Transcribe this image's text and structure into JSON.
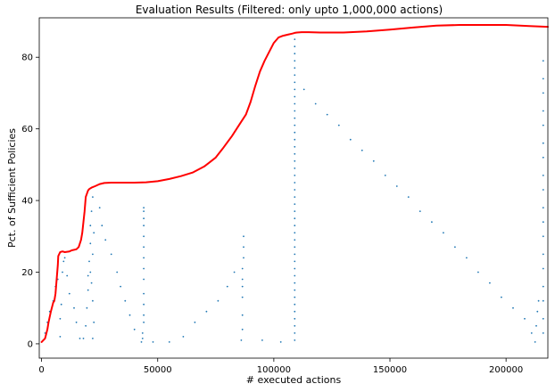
{
  "chart_data": {
    "type": "scatter",
    "title": "Evaluation Results (Filtered: only upto 1,000,000 actions)",
    "xlabel": "# executed actions",
    "ylabel": "Pct. of Sufficient Policies",
    "xlim": [
      -1000,
      218000
    ],
    "ylim": [
      -4,
      91
    ],
    "xticks": [
      0,
      50000,
      100000,
      150000,
      200000
    ],
    "yticks": [
      0,
      20,
      40,
      60,
      80
    ],
    "grid": false,
    "colors": {
      "scatter": "#1f77b4",
      "line": "#ff0000"
    },
    "series": [
      {
        "type": "scatter",
        "points": [
          [
            1500,
            3
          ],
          [
            2500,
            6
          ],
          [
            3500,
            9
          ],
          [
            5000,
            12
          ],
          [
            6000,
            16
          ],
          [
            7000,
            18
          ],
          [
            8000,
            2
          ],
          [
            8000,
            7
          ],
          [
            8500,
            11
          ],
          [
            9000,
            20
          ],
          [
            9500,
            23
          ],
          [
            10000,
            24
          ],
          [
            11000,
            19
          ],
          [
            12000,
            14
          ],
          [
            14000,
            10
          ],
          [
            15000,
            6
          ],
          [
            16500,
            1.5
          ],
          [
            18000,
            1.5
          ],
          [
            19000,
            5
          ],
          [
            19500,
            10
          ],
          [
            20000,
            15
          ],
          [
            20000,
            19
          ],
          [
            20500,
            23
          ],
          [
            21000,
            28
          ],
          [
            21000,
            33
          ],
          [
            21500,
            37
          ],
          [
            22000,
            41
          ],
          [
            22000,
            1.5
          ],
          [
            22500,
            6
          ],
          [
            22000,
            12
          ],
          [
            21500,
            17
          ],
          [
            21000,
            20
          ],
          [
            22000,
            25
          ],
          [
            22500,
            31
          ],
          [
            25000,
            38
          ],
          [
            26000,
            33
          ],
          [
            27500,
            29
          ],
          [
            30000,
            25
          ],
          [
            32500,
            20
          ],
          [
            34000,
            16
          ],
          [
            36000,
            12
          ],
          [
            38000,
            8
          ],
          [
            40000,
            4
          ],
          [
            43000,
            0.5
          ],
          [
            43500,
            1.5
          ],
          [
            43500,
            3
          ],
          [
            44000,
            6
          ],
          [
            44000,
            8
          ],
          [
            44000,
            11
          ],
          [
            44000,
            14
          ],
          [
            44000,
            18
          ],
          [
            44000,
            21
          ],
          [
            44000,
            24
          ],
          [
            44000,
            27
          ],
          [
            44000,
            30
          ],
          [
            44000,
            33
          ],
          [
            44000,
            35
          ],
          [
            44000,
            37
          ],
          [
            44000,
            38
          ],
          [
            48000,
            0.5
          ],
          [
            55000,
            0.5
          ],
          [
            61000,
            2
          ],
          [
            66000,
            6
          ],
          [
            71000,
            9
          ],
          [
            76000,
            12
          ],
          [
            80000,
            16
          ],
          [
            83000,
            20
          ],
          [
            86000,
            1
          ],
          [
            86500,
            4
          ],
          [
            86500,
            8
          ],
          [
            86500,
            13
          ],
          [
            86500,
            16
          ],
          [
            86500,
            18
          ],
          [
            86500,
            21
          ],
          [
            87000,
            24
          ],
          [
            87000,
            27
          ],
          [
            87000,
            30
          ],
          [
            95000,
            1
          ],
          [
            103000,
            0.5
          ],
          [
            109000,
            1
          ],
          [
            109000,
            3
          ],
          [
            109000,
            5
          ],
          [
            109000,
            7
          ],
          [
            109000,
            9
          ],
          [
            109000,
            11
          ],
          [
            109000,
            13
          ],
          [
            109000,
            15
          ],
          [
            109000,
            17
          ],
          [
            109000,
            19
          ],
          [
            109000,
            21
          ],
          [
            109000,
            23
          ],
          [
            109000,
            25
          ],
          [
            109000,
            27
          ],
          [
            109000,
            29
          ],
          [
            109000,
            31
          ],
          [
            109000,
            33
          ],
          [
            109000,
            35
          ],
          [
            109000,
            37
          ],
          [
            109000,
            39
          ],
          [
            109000,
            41
          ],
          [
            109000,
            43
          ],
          [
            109000,
            45
          ],
          [
            109000,
            47
          ],
          [
            109000,
            49
          ],
          [
            109000,
            51
          ],
          [
            109000,
            53
          ],
          [
            109000,
            55
          ],
          [
            109000,
            57
          ],
          [
            109000,
            59
          ],
          [
            109000,
            61
          ],
          [
            109000,
            63
          ],
          [
            109000,
            65
          ],
          [
            109000,
            67
          ],
          [
            109000,
            69
          ],
          [
            109000,
            71
          ],
          [
            109000,
            73
          ],
          [
            109000,
            75
          ],
          [
            109000,
            77
          ],
          [
            109000,
            79
          ],
          [
            109000,
            81
          ],
          [
            109000,
            83
          ],
          [
            109000,
            85
          ],
          [
            113000,
            71
          ],
          [
            118000,
            67
          ],
          [
            123000,
            64
          ],
          [
            128000,
            61
          ],
          [
            133000,
            57
          ],
          [
            138000,
            54
          ],
          [
            143000,
            51
          ],
          [
            148000,
            47
          ],
          [
            153000,
            44
          ],
          [
            158000,
            41
          ],
          [
            163000,
            37
          ],
          [
            168000,
            34
          ],
          [
            173000,
            31
          ],
          [
            178000,
            27
          ],
          [
            183000,
            24
          ],
          [
            188000,
            20
          ],
          [
            193000,
            17
          ],
          [
            198000,
            13
          ],
          [
            203000,
            10
          ],
          [
            208000,
            7
          ],
          [
            211000,
            3
          ],
          [
            212500,
            0.5
          ],
          [
            213000,
            5
          ],
          [
            213500,
            9
          ],
          [
            214000,
            12
          ],
          [
            216000,
            3
          ],
          [
            216000,
            7
          ],
          [
            216000,
            12
          ],
          [
            216000,
            16
          ],
          [
            216000,
            21
          ],
          [
            216000,
            25
          ],
          [
            216000,
            30
          ],
          [
            216000,
            34
          ],
          [
            216000,
            38
          ],
          [
            216000,
            43
          ],
          [
            216000,
            47
          ],
          [
            216000,
            52
          ],
          [
            216000,
            56
          ],
          [
            216000,
            61
          ],
          [
            216000,
            65
          ],
          [
            216000,
            70
          ],
          [
            216000,
            74
          ],
          [
            216000,
            79
          ]
        ]
      },
      {
        "type": "line",
        "x": [
          0,
          1500,
          2500,
          3000,
          4000,
          5000,
          5500,
          6000,
          6500,
          7000,
          7200,
          8000,
          9000,
          10000,
          11000,
          12000,
          13000,
          15000,
          16000,
          17000,
          17500,
          18000,
          18500,
          19000,
          20000,
          20500,
          21500,
          23000,
          25000,
          27000,
          30000,
          35000,
          40000,
          45000,
          50000,
          55000,
          60000,
          65000,
          70000,
          72000,
          75000,
          78000,
          82000,
          85000,
          88000,
          90000,
          92000,
          94000,
          96000,
          98000,
          100000,
          102000,
          104000,
          106000,
          108000,
          109000,
          110000,
          112000,
          115000,
          120000,
          130000,
          140000,
          150000,
          160000,
          170000,
          180000,
          190000,
          200000,
          210000,
          218000
        ],
        "y": [
          0.5,
          1.5,
          4,
          6,
          9,
          11.5,
          12,
          14,
          18,
          22,
          24.5,
          25.6,
          25.8,
          25.6,
          25.7,
          25.8,
          26.1,
          26.4,
          27,
          29,
          31,
          34,
          37,
          41,
          42.8,
          43.2,
          43.6,
          44,
          44.6,
          44.9,
          45,
          45,
          45,
          45.1,
          45.4,
          46,
          46.8,
          47.8,
          49.5,
          50.5,
          52,
          54.5,
          58,
          61,
          64,
          67.5,
          72,
          76,
          79,
          81.5,
          84,
          85.5,
          86,
          86.3,
          86.6,
          86.8,
          86.9,
          87,
          87,
          86.9,
          86.9,
          87.2,
          87.7,
          88.3,
          88.8,
          89,
          89,
          89,
          88.7,
          88.5
        ]
      }
    ]
  }
}
